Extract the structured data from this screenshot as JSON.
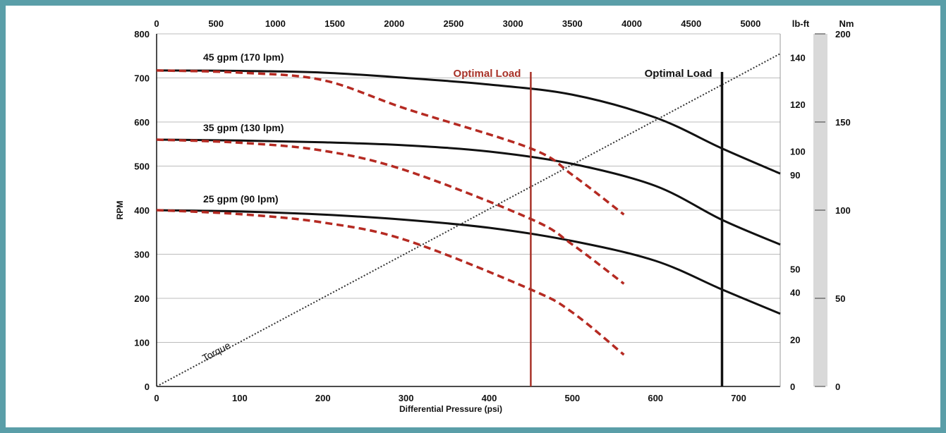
{
  "chart_data": {
    "type": "line",
    "xlabel": "Differential Pressure (psi)",
    "ylabel": "RPM",
    "xlim": [
      0,
      750
    ],
    "ylim": [
      0,
      800
    ],
    "x_ticks": [
      0,
      100,
      200,
      300,
      400,
      500,
      600,
      700
    ],
    "y_ticks": [
      0,
      100,
      200,
      300,
      400,
      500,
      600,
      700,
      800
    ],
    "grid": true,
    "top_axis": {
      "ticks": [
        0,
        500,
        1000,
        1500,
        2000,
        2500,
        3000,
        3500,
        4000,
        4500,
        5000
      ],
      "unit": "lb-ft"
    },
    "torque_axis": {
      "unit": "lb-ft",
      "ticks": [
        0,
        20,
        40,
        50,
        90,
        100,
        120,
        140
      ]
    },
    "nm_axis": {
      "unit": "Nm",
      "ticks": [
        0,
        50,
        100,
        150,
        200
      ]
    },
    "series": [
      {
        "name": "45 gpm (170 lpm)",
        "style": "solid",
        "color": "#111111",
        "x": [
          0,
          100,
          200,
          300,
          400,
          500,
          600,
          680,
          750
        ],
        "y": [
          717,
          716,
          712,
          700,
          685,
          662,
          610,
          540,
          483
        ]
      },
      {
        "name": "35 gpm (130 lpm)",
        "style": "solid",
        "color": "#111111",
        "x": [
          0,
          100,
          200,
          300,
          400,
          500,
          600,
          680,
          750
        ],
        "y": [
          560,
          558,
          554,
          547,
          533,
          505,
          455,
          378,
          322
        ]
      },
      {
        "name": "25 gpm (90 lpm)",
        "style": "solid",
        "color": "#111111",
        "x": [
          0,
          100,
          200,
          300,
          400,
          500,
          600,
          680,
          750
        ],
        "y": [
          400,
          397,
          390,
          378,
          360,
          330,
          285,
          220,
          165
        ]
      },
      {
        "name": "",
        "style": "dashed",
        "color": "#b52a22",
        "x": [
          0,
          100,
          200,
          300,
          450,
          500,
          562
        ],
        "y": [
          717,
          712,
          695,
          630,
          540,
          480,
          390
        ]
      },
      {
        "name": "",
        "style": "dashed",
        "color": "#b52a22",
        "x": [
          0,
          100,
          200,
          300,
          450,
          500,
          562
        ],
        "y": [
          560,
          553,
          535,
          490,
          380,
          322,
          233
        ]
      },
      {
        "name": "",
        "style": "dashed",
        "color": "#b52a22",
        "x": [
          0,
          100,
          200,
          300,
          450,
          500,
          562
        ],
        "y": [
          400,
          391,
          372,
          332,
          220,
          168,
          72
        ]
      },
      {
        "name": "Torque",
        "style": "dotted",
        "color": "#333333",
        "x": [
          0,
          750
        ],
        "y": [
          0,
          755
        ]
      }
    ],
    "annotations": [
      {
        "text": "Optimal Load",
        "x": 450,
        "color": "#a83228"
      },
      {
        "text": "Optimal Load",
        "x": 680,
        "color": "#111111"
      }
    ]
  }
}
